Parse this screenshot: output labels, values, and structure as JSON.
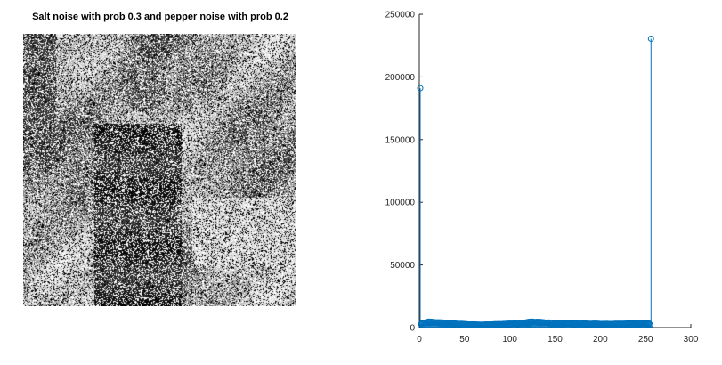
{
  "figure": {
    "image_panel": {
      "title": "Salt noise with prob 0.3 and pepper noise with prob 0.2",
      "salt_probability": 0.3,
      "pepper_probability": 0.2
    }
  },
  "chart_data": {
    "type": "stem",
    "title": "",
    "xlabel": "",
    "ylabel": "",
    "xlim": [
      0,
      300
    ],
    "ylim": [
      0,
      250000
    ],
    "xticks": [
      0,
      50,
      100,
      150,
      200,
      250,
      300
    ],
    "yticks": [
      0,
      50000,
      100000,
      150000,
      200000,
      250000
    ],
    "xtick_labels": [
      "0",
      "50",
      "100",
      "150",
      "200",
      "250",
      "300"
    ],
    "ytick_labels": [
      "0",
      "50000",
      "100000",
      "150000",
      "200000",
      "250000"
    ],
    "grid": false,
    "series_color": "#0072BD",
    "peaks": [
      {
        "x": 1,
        "y": 191000
      },
      {
        "x": 256,
        "y": 230500
      }
    ],
    "baseline_profile": [
      {
        "x": 2,
        "y": 3000
      },
      {
        "x": 10,
        "y": 4200
      },
      {
        "x": 25,
        "y": 3600
      },
      {
        "x": 40,
        "y": 2900
      },
      {
        "x": 55,
        "y": 2300
      },
      {
        "x": 70,
        "y": 2100
      },
      {
        "x": 85,
        "y": 2400
      },
      {
        "x": 100,
        "y": 2800
      },
      {
        "x": 115,
        "y": 3500
      },
      {
        "x": 125,
        "y": 4300
      },
      {
        "x": 135,
        "y": 3900
      },
      {
        "x": 150,
        "y": 3300
      },
      {
        "x": 170,
        "y": 3000
      },
      {
        "x": 190,
        "y": 2800
      },
      {
        "x": 210,
        "y": 2600
      },
      {
        "x": 230,
        "y": 2900
      },
      {
        "x": 245,
        "y": 3200
      },
      {
        "x": 255,
        "y": 2800
      }
    ]
  }
}
